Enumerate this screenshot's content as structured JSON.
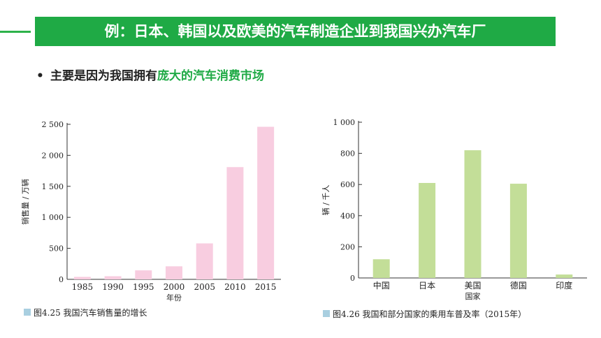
{
  "header": {
    "title": "例：日本、韩国以及欧美的汽车制造企业到我国兴办汽车厂"
  },
  "bullet": {
    "marker": "•",
    "text_plain": "主要是因为我国拥有",
    "text_accent": "庞大的汽车消费市场"
  },
  "colors": {
    "accent": "#1faa45",
    "pink_bar": "#f8cde0",
    "green_bar": "#c3de98",
    "caption_square": "#a9cfe0"
  },
  "chart_data": [
    {
      "type": "bar",
      "categories": [
        "1985",
        "1990",
        "1995",
        "2000",
        "2005",
        "2010",
        "2015"
      ],
      "values": [
        40,
        50,
        145,
        210,
        580,
        1810,
        2460
      ],
      "ylim": [
        0,
        2500
      ],
      "yticks": [
        0,
        500,
        1000,
        1500,
        2000,
        2500
      ],
      "ytick_labels": [
        "0",
        "500",
        "1 000",
        "1 500",
        "2 000",
        "2 500"
      ],
      "xlabel": "年份",
      "ylabel": "销售量 / 万辆",
      "caption": "图4.25  我国汽车销售量的增长"
    },
    {
      "type": "bar",
      "categories": [
        "中国",
        "日本",
        "美国",
        "德国",
        "印度"
      ],
      "values": [
        120,
        610,
        820,
        605,
        22
      ],
      "ylim": [
        0,
        1000
      ],
      "yticks": [
        0,
        200,
        400,
        600,
        800,
        1000
      ],
      "ytick_labels": [
        "0",
        "200",
        "400",
        "600",
        "800",
        "1 000"
      ],
      "xlabel": "国家",
      "ylabel": "辆 / 千人",
      "caption": "图4.26  我国和部分国家的乘用车普及率（2015年）"
    }
  ]
}
